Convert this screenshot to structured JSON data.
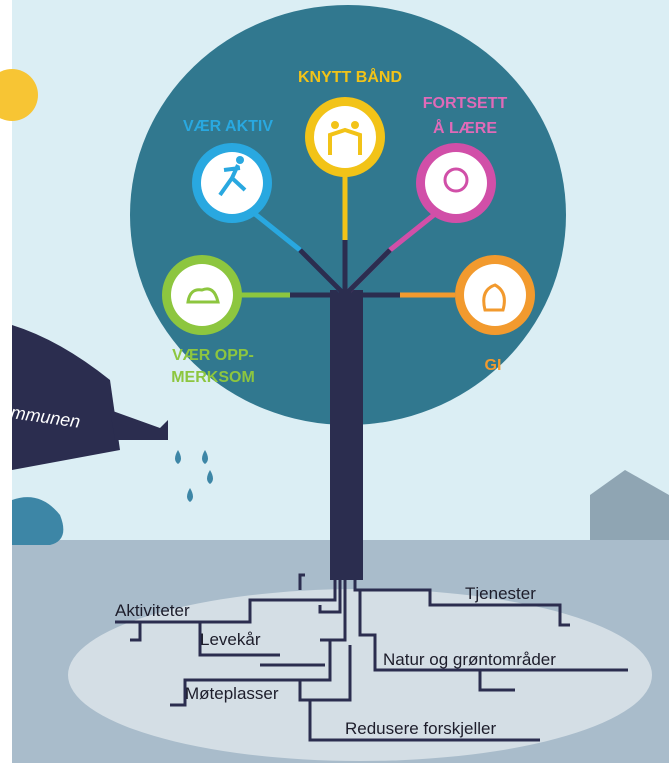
{
  "branches": [
    {
      "label_lines": [
        "VÆR AKTIV"
      ]
    },
    {
      "label_lines": [
        "KNYTT BÅND"
      ]
    },
    {
      "label_lines": [
        "FORTSETT",
        "Å LÆRE"
      ]
    },
    {
      "label_lines": [
        "VÆR OPP-",
        "MERKSOM"
      ]
    },
    {
      "label_lines": [
        "GI"
      ]
    }
  ],
  "watering_can": {
    "label": "mmunen"
  },
  "roots": [
    {
      "label": "Aktiviteter"
    },
    {
      "label": "Levekår"
    },
    {
      "label": "Møteplasser"
    },
    {
      "label": "Tjenester"
    },
    {
      "label": "Natur og grøntområder"
    },
    {
      "label": "Redusere forskjeller"
    }
  ]
}
